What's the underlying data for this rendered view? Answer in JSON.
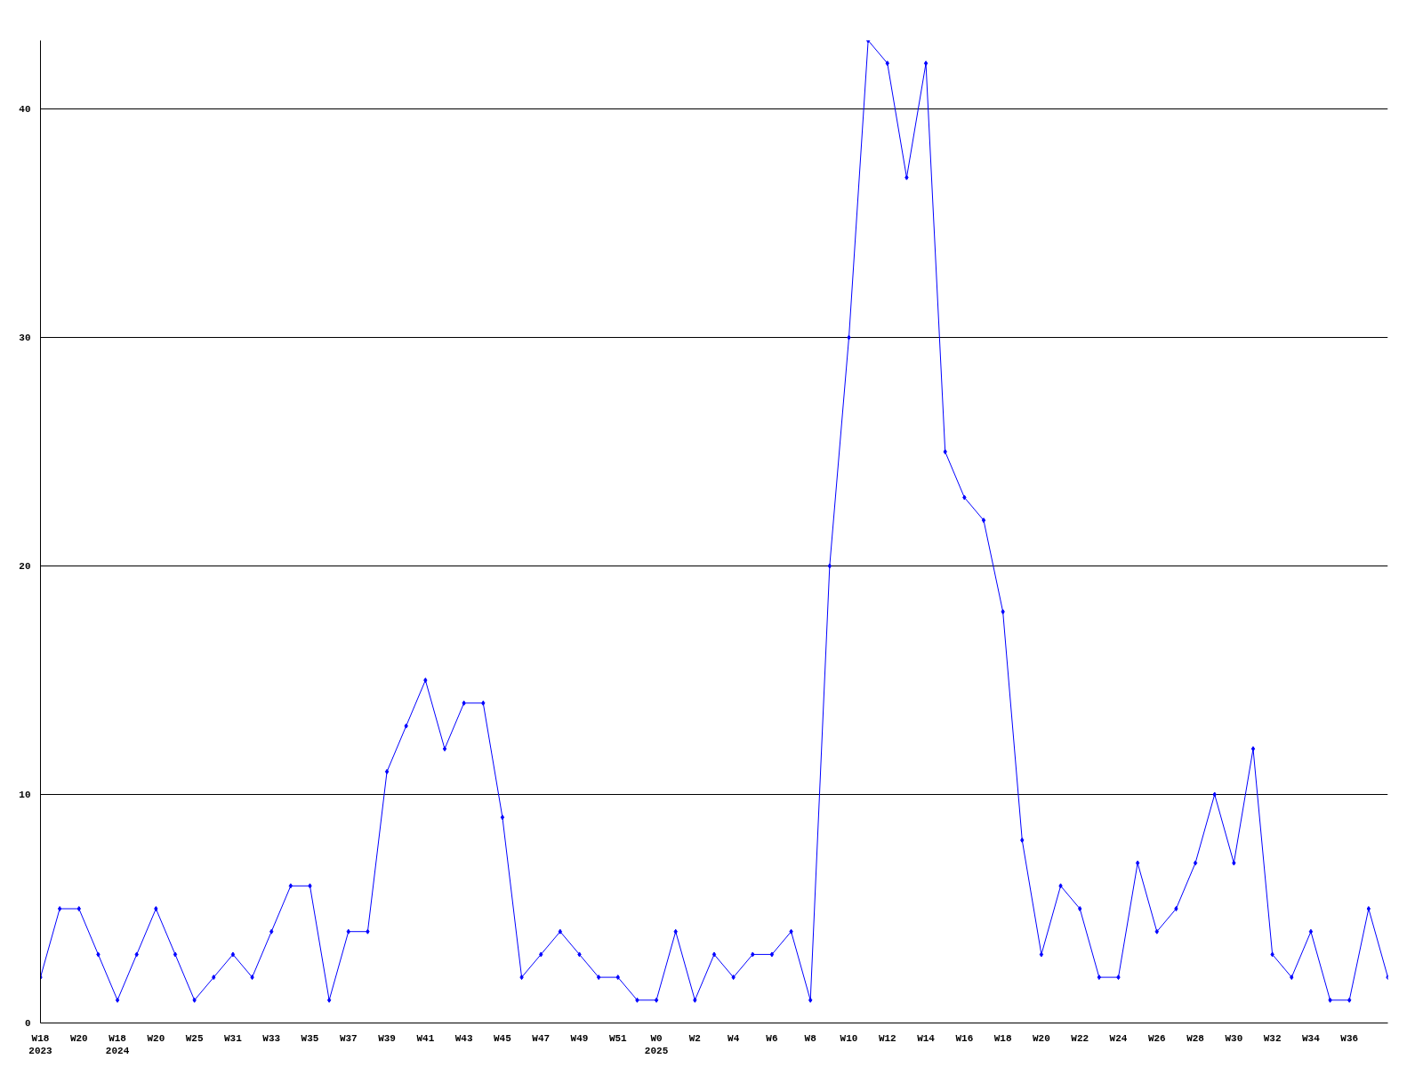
{
  "chart_data": {
    "type": "line",
    "categories": [
      "W18\n2023",
      null,
      "W20",
      null,
      "W18\n2024",
      null,
      "W20",
      null,
      "W25",
      null,
      "W31",
      null,
      "W33",
      null,
      "W35",
      null,
      "W37",
      null,
      "W39",
      null,
      "W41",
      null,
      "W43",
      null,
      "W45",
      null,
      "W47",
      null,
      "W49",
      null,
      "W51",
      null,
      "W0\n2025",
      null,
      "W2",
      null,
      "W4",
      null,
      "W6",
      null,
      "W8",
      null,
      "W10",
      null,
      "W12",
      null,
      "W14",
      null,
      "W16",
      null,
      "W18",
      null,
      "W20",
      null,
      "W22",
      null,
      "W24",
      null,
      "W26",
      null,
      "W28",
      null,
      "W30",
      null,
      "W32",
      null,
      "W34",
      null,
      "W36",
      null,
      null
    ],
    "series": [
      {
        "color": "#0000ff",
        "values": [
          2,
          5,
          5,
          3,
          1,
          3,
          5,
          3,
          1,
          2,
          3,
          2,
          4,
          6,
          6,
          1,
          4,
          4,
          11,
          13,
          15,
          12,
          14,
          14,
          9,
          2,
          3,
          4,
          3,
          2,
          2,
          1,
          1,
          4,
          1,
          3,
          2,
          3,
          3,
          4,
          1,
          20,
          30,
          43,
          42,
          37,
          42,
          25,
          23,
          22,
          18,
          8,
          3,
          6,
          5,
          2,
          2,
          7,
          4,
          5,
          7,
          10,
          7,
          12,
          3,
          2,
          4,
          1,
          1,
          5,
          2
        ]
      }
    ],
    "ylim": [
      0,
      43
    ],
    "yticks": [
      0,
      10,
      20,
      30,
      40
    ],
    "grid": "y",
    "marker": "diamond",
    "line_style": "solid"
  }
}
